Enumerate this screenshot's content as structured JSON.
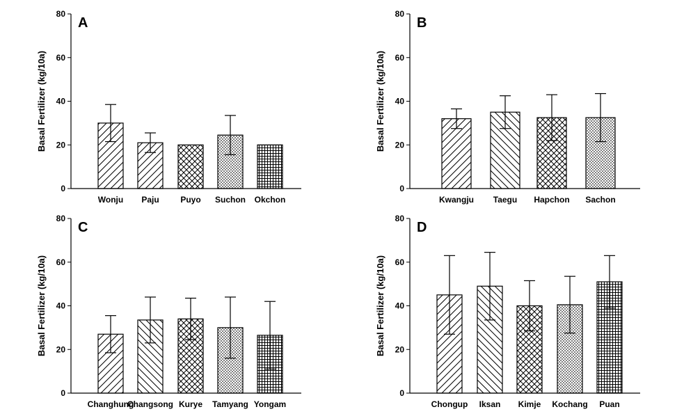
{
  "chart_data": [
    {
      "type": "bar",
      "panel": "A",
      "ylabel": "Basal Fertilizer (kg/10a)",
      "ylim": [
        0,
        80
      ],
      "yticks": [
        "0",
        "20",
        "40",
        "60",
        "80"
      ],
      "categories": [
        "Wonju",
        "Paju",
        "Puyo",
        "Suchon",
        "Okchon"
      ],
      "values": [
        30,
        21,
        20,
        24.5,
        20
      ],
      "errors": [
        8.5,
        4.5,
        0,
        9,
        0
      ],
      "patterns": [
        "fdiag",
        "fdiag",
        "cross",
        "dense-cross",
        "grid"
      ]
    },
    {
      "type": "bar",
      "panel": "B",
      "ylabel": "Basal Fertilizer (kg/10a)",
      "ylim": [
        0,
        80
      ],
      "yticks": [
        "0",
        "20",
        "40",
        "60",
        "80"
      ],
      "categories": [
        "Kwangju",
        "Taegu",
        "Hapchon",
        "Sachon"
      ],
      "values": [
        32,
        35,
        32.5,
        32.5
      ],
      "errors": [
        4.5,
        7.5,
        10.5,
        11
      ],
      "patterns": [
        "fdiag",
        "bdiag",
        "cross",
        "dense-cross"
      ]
    },
    {
      "type": "bar",
      "panel": "C",
      "ylabel": "Basal Fertilizer (kg/10a)",
      "ylim": [
        0,
        80
      ],
      "yticks": [
        "0",
        "20",
        "40",
        "60",
        "80"
      ],
      "categories": [
        "Changhung",
        "Changsong",
        "Kurye",
        "Tamyang",
        "Yongam"
      ],
      "values": [
        27,
        33.5,
        34,
        30,
        26.5
      ],
      "errors": [
        8.5,
        10.5,
        9.5,
        14,
        15.5
      ],
      "patterns": [
        "fdiag",
        "bdiag",
        "cross",
        "dense-cross",
        "grid"
      ]
    },
    {
      "type": "bar",
      "panel": "D",
      "ylabel": "Basal Fertilizer (kg/10a)",
      "ylim": [
        0,
        80
      ],
      "yticks": [
        "0",
        "20",
        "40",
        "60",
        "80"
      ],
      "categories": [
        "Chongup",
        "Iksan",
        "Kimje",
        "Kochang",
        "Puan"
      ],
      "values": [
        45,
        49,
        40,
        40.5,
        51
      ],
      "errors": [
        18,
        15.5,
        11.5,
        13,
        12
      ],
      "patterns": [
        "fdiag",
        "bdiag",
        "cross",
        "dense-cross",
        "grid"
      ]
    }
  ]
}
